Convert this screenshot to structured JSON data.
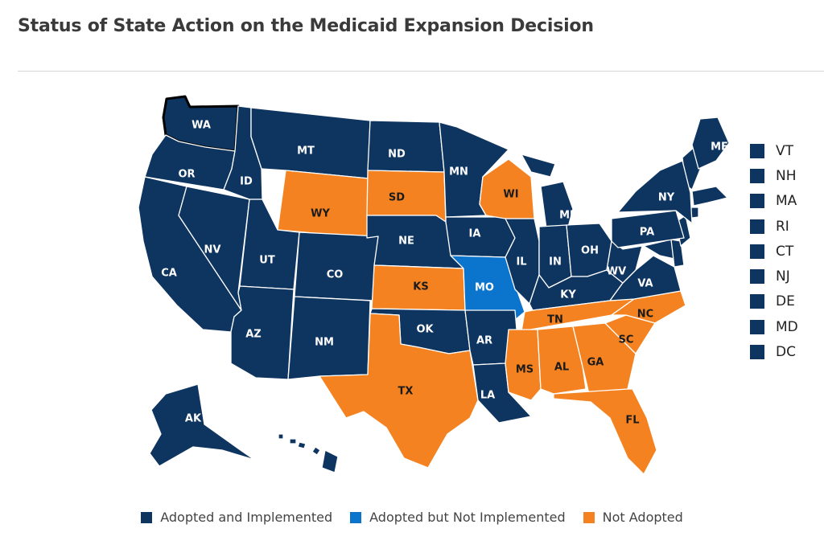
{
  "title": "Status of State Action on the Medicaid Expansion Decision",
  "colors": {
    "adopted_implemented": "#0e3460",
    "adopted_not_implemented": "#0b74cc",
    "not_adopted": "#f58220"
  },
  "legend": [
    {
      "label": "Adopted and Implemented",
      "color": "#0e3460"
    },
    {
      "label": "Adopted but Not Implemented",
      "color": "#0b74cc"
    },
    {
      "label": "Not Adopted",
      "color": "#f58220"
    }
  ],
  "small_states": [
    "VT",
    "NH",
    "MA",
    "RI",
    "CT",
    "NJ",
    "DE",
    "MD",
    "DC"
  ],
  "states": [
    {
      "abbr": "WA",
      "status": "adopted_implemented",
      "selected": true
    },
    {
      "abbr": "OR",
      "status": "adopted_implemented"
    },
    {
      "abbr": "CA",
      "status": "adopted_implemented"
    },
    {
      "abbr": "NV",
      "status": "adopted_implemented"
    },
    {
      "abbr": "ID",
      "status": "adopted_implemented"
    },
    {
      "abbr": "MT",
      "status": "adopted_implemented"
    },
    {
      "abbr": "WY",
      "status": "not_adopted"
    },
    {
      "abbr": "UT",
      "status": "adopted_implemented"
    },
    {
      "abbr": "AZ",
      "status": "adopted_implemented"
    },
    {
      "abbr": "CO",
      "status": "adopted_implemented"
    },
    {
      "abbr": "NM",
      "status": "adopted_implemented"
    },
    {
      "abbr": "ND",
      "status": "adopted_implemented"
    },
    {
      "abbr": "SD",
      "status": "not_adopted"
    },
    {
      "abbr": "NE",
      "status": "adopted_implemented"
    },
    {
      "abbr": "KS",
      "status": "not_adopted"
    },
    {
      "abbr": "OK",
      "status": "adopted_implemented"
    },
    {
      "abbr": "TX",
      "status": "not_adopted"
    },
    {
      "abbr": "MN",
      "status": "adopted_implemented"
    },
    {
      "abbr": "IA",
      "status": "adopted_implemented"
    },
    {
      "abbr": "MO",
      "status": "adopted_not_implemented"
    },
    {
      "abbr": "AR",
      "status": "adopted_implemented"
    },
    {
      "abbr": "LA",
      "status": "adopted_implemented"
    },
    {
      "abbr": "WI",
      "status": "not_adopted"
    },
    {
      "abbr": "IL",
      "status": "adopted_implemented"
    },
    {
      "abbr": "MI",
      "status": "adopted_implemented"
    },
    {
      "abbr": "IN",
      "status": "adopted_implemented"
    },
    {
      "abbr": "OH",
      "status": "adopted_implemented"
    },
    {
      "abbr": "KY",
      "status": "adopted_implemented"
    },
    {
      "abbr": "TN",
      "status": "not_adopted"
    },
    {
      "abbr": "MS",
      "status": "not_adopted"
    },
    {
      "abbr": "AL",
      "status": "not_adopted"
    },
    {
      "abbr": "GA",
      "status": "not_adopted"
    },
    {
      "abbr": "FL",
      "status": "not_adopted"
    },
    {
      "abbr": "SC",
      "status": "not_adopted"
    },
    {
      "abbr": "NC",
      "status": "not_adopted"
    },
    {
      "abbr": "VA",
      "status": "adopted_implemented"
    },
    {
      "abbr": "WV",
      "status": "adopted_implemented"
    },
    {
      "abbr": "PA",
      "status": "adopted_implemented"
    },
    {
      "abbr": "NY",
      "status": "adopted_implemented"
    },
    {
      "abbr": "ME",
      "status": "adopted_implemented"
    },
    {
      "abbr": "AK",
      "status": "adopted_implemented"
    },
    {
      "abbr": "HI",
      "status": "adopted_implemented"
    }
  ]
}
